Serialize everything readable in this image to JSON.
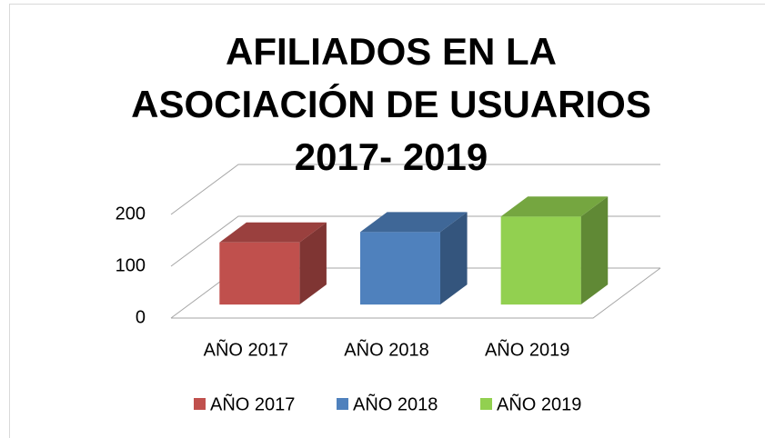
{
  "chart_data": {
    "type": "bar3d",
    "title": "AFILIADOS EN LA ASOCIACIÓN DE USUARIOS 2017- 2019",
    "categories": [
      "AÑO 2017",
      "AÑO 2018",
      "AÑO 2019"
    ],
    "values": [
      120,
      140,
      170
    ],
    "colors": [
      "#c0504d",
      "#4f81bd",
      "#92d050"
    ],
    "ylim": [
      0,
      200
    ],
    "yticks": [
      0,
      100,
      200
    ],
    "grid": true,
    "legend": "bottom"
  }
}
